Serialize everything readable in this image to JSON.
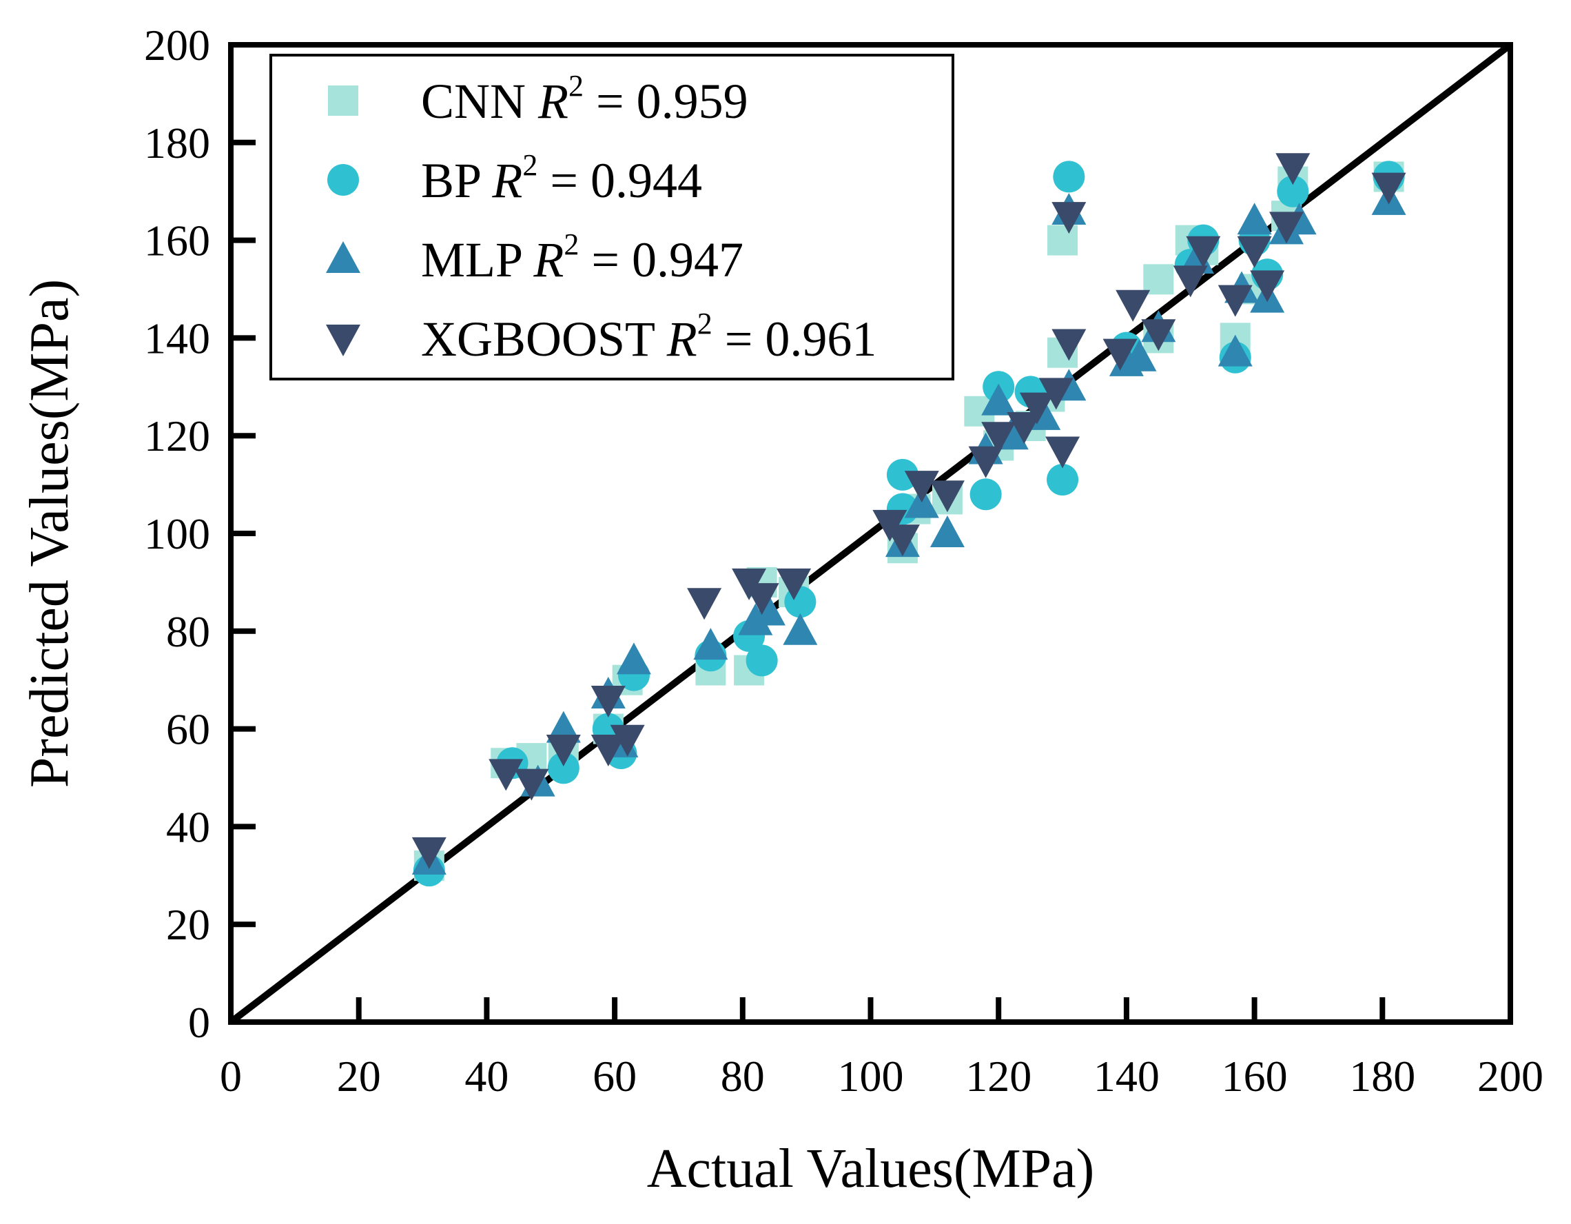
{
  "chart_data": {
    "type": "scatter",
    "xlabel": "Actual Values(MPa)",
    "ylabel": "Predicted Values(MPa)",
    "xlim": [
      0,
      200
    ],
    "ylim": [
      0,
      200
    ],
    "x_ticks": [
      0,
      20,
      40,
      60,
      80,
      100,
      120,
      140,
      160,
      180,
      200
    ],
    "y_ticks": [
      0,
      20,
      40,
      60,
      80,
      100,
      120,
      140,
      160,
      180,
      200
    ],
    "reference_line": {
      "from": [
        0,
        0
      ],
      "to": [
        200,
        200
      ],
      "color": "#000000"
    },
    "legend_position": "top-left",
    "series": [
      {
        "name": "CNN",
        "r2_label": "R",
        "r2_exp": "2",
        "r2_value": "= 0.959",
        "marker": "square",
        "color": "#a6e3db",
        "points": [
          [
            31,
            32
          ],
          [
            43,
            53
          ],
          [
            47,
            54
          ],
          [
            52,
            55
          ],
          [
            59,
            60
          ],
          [
            62,
            70
          ],
          [
            75,
            72
          ],
          [
            81,
            72
          ],
          [
            83,
            90
          ],
          [
            88,
            88
          ],
          [
            105,
            97
          ],
          [
            107,
            105
          ],
          [
            112,
            107
          ],
          [
            117,
            125
          ],
          [
            120,
            118
          ],
          [
            125,
            122
          ],
          [
            128,
            128
          ],
          [
            130,
            160
          ],
          [
            130,
            137
          ],
          [
            145,
            152
          ],
          [
            145,
            140
          ],
          [
            150,
            160
          ],
          [
            152,
            158
          ],
          [
            157,
            140
          ],
          [
            160,
            150
          ],
          [
            165,
            165
          ],
          [
            166,
            172
          ],
          [
            181,
            173
          ]
        ]
      },
      {
        "name": "BP",
        "r2_label": "R",
        "r2_exp": "2",
        "r2_value": "= 0.944",
        "marker": "circle",
        "color": "#2fc1d2",
        "points": [
          [
            31,
            31
          ],
          [
            44,
            53
          ],
          [
            52,
            52
          ],
          [
            59,
            60
          ],
          [
            61,
            55
          ],
          [
            63,
            71
          ],
          [
            75,
            75
          ],
          [
            81,
            79
          ],
          [
            83,
            74
          ],
          [
            89,
            86
          ],
          [
            105,
            112
          ],
          [
            105,
            105
          ],
          [
            118,
            108
          ],
          [
            120,
            130
          ],
          [
            125,
            129
          ],
          [
            130,
            111
          ],
          [
            131,
            173
          ],
          [
            140,
            138
          ],
          [
            150,
            155
          ],
          [
            152,
            160
          ],
          [
            157,
            136
          ],
          [
            160,
            160
          ],
          [
            162,
            153
          ],
          [
            166,
            170
          ],
          [
            181,
            173
          ]
        ]
      },
      {
        "name": "MLP",
        "r2_label": "R",
        "r2_exp": "2",
        "r2_value": "= 0.947",
        "marker": "triangle-up",
        "color": "#2e86b1",
        "points": [
          [
            31,
            33
          ],
          [
            48,
            49
          ],
          [
            52,
            60
          ],
          [
            59,
            67
          ],
          [
            61,
            57
          ],
          [
            63,
            74
          ],
          [
            75,
            77
          ],
          [
            82,
            82
          ],
          [
            84,
            84
          ],
          [
            89,
            80
          ],
          [
            105,
            98
          ],
          [
            108,
            106
          ],
          [
            112,
            100
          ],
          [
            118,
            117
          ],
          [
            120,
            127
          ],
          [
            122,
            120
          ],
          [
            127,
            124
          ],
          [
            131,
            130
          ],
          [
            131,
            166
          ],
          [
            140,
            135
          ],
          [
            142,
            136
          ],
          [
            145,
            142
          ],
          [
            151,
            156
          ],
          [
            157,
            137
          ],
          [
            158,
            150
          ],
          [
            160,
            164
          ],
          [
            162,
            148
          ],
          [
            165,
            162
          ],
          [
            167,
            164
          ],
          [
            181,
            168
          ]
        ]
      },
      {
        "name": "XGBOOST",
        "r2_label": "R",
        "r2_exp": "2",
        "r2_value": "= 0.961",
        "marker": "triangle-down",
        "color": "#3a4a6b",
        "points": [
          [
            31,
            35
          ],
          [
            43,
            51
          ],
          [
            47,
            49
          ],
          [
            52,
            56
          ],
          [
            59,
            56
          ],
          [
            59,
            66
          ],
          [
            62,
            58
          ],
          [
            74,
            86
          ],
          [
            81,
            90
          ],
          [
            83,
            87
          ],
          [
            88,
            90
          ],
          [
            103,
            102
          ],
          [
            105,
            99
          ],
          [
            108,
            110
          ],
          [
            112,
            108
          ],
          [
            118,
            115
          ],
          [
            120,
            120
          ],
          [
            124,
            122
          ],
          [
            126,
            126
          ],
          [
            129,
            129
          ],
          [
            130,
            117
          ],
          [
            131,
            165
          ],
          [
            131,
            139
          ],
          [
            139,
            137
          ],
          [
            141,
            147
          ],
          [
            145,
            141
          ],
          [
            150,
            152
          ],
          [
            152,
            158
          ],
          [
            157,
            148
          ],
          [
            160,
            158
          ],
          [
            162,
            151
          ],
          [
            165,
            163
          ],
          [
            166,
            175
          ],
          [
            181,
            171
          ]
        ]
      }
    ]
  }
}
